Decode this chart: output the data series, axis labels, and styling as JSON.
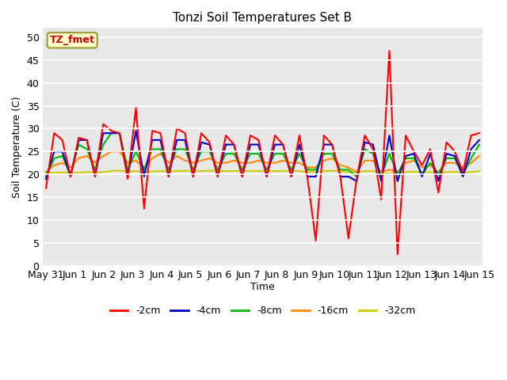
{
  "title": "Tonzi Soil Temperatures Set B",
  "xlabel": "Time",
  "ylabel": "Soil Temperature (C)",
  "annotation": "TZ_fmet",
  "ylim": [
    0,
    52
  ],
  "yticks": [
    0,
    5,
    10,
    15,
    20,
    25,
    30,
    35,
    40,
    45,
    50
  ],
  "bg_color": "#e8e8e8",
  "series_colors": {
    "-2cm": "#ff0000",
    "-4cm": "#0000cc",
    "-8cm": "#00bb00",
    "-16cm": "#ff8800",
    "-32cm": "#cccc00"
  },
  "line_width": 1.5,
  "x_labels": [
    "May 31",
    "Jun 1",
    "Jun 2",
    "Jun 3",
    "Jun 4",
    "Jun 5",
    "Jun 6",
    "Jun 7",
    "Jun 8",
    "Jun 9",
    "Jun 10",
    "Jun 11",
    "Jun 12",
    "Jun 13",
    "Jun 14",
    "Jun 15"
  ],
  "data": {
    "-2cm": [
      17.0,
      29.0,
      27.5,
      19.5,
      28.0,
      27.5,
      19.5,
      31.0,
      29.5,
      29.0,
      19.0,
      34.5,
      12.5,
      29.5,
      29.0,
      19.5,
      30.0,
      29.0,
      19.5,
      29.0,
      27.0,
      19.5,
      28.5,
      26.5,
      19.5,
      28.5,
      27.5,
      19.5,
      28.5,
      26.5,
      19.5,
      28.5,
      19.0,
      5.5,
      28.5,
      26.5,
      19.5,
      6.0,
      19.0,
      28.5,
      25.5,
      14.5,
      47.0,
      2.5,
      28.5,
      25.0,
      22.0,
      25.5,
      16.0,
      27.0,
      25.0,
      20.5,
      28.5,
      29.0
    ],
    "-4cm": [
      19.0,
      25.0,
      25.0,
      19.5,
      27.5,
      27.5,
      19.5,
      29.0,
      29.0,
      29.0,
      19.5,
      29.5,
      19.5,
      27.5,
      27.5,
      19.5,
      27.5,
      27.5,
      19.5,
      27.0,
      26.5,
      19.5,
      26.5,
      26.5,
      19.5,
      26.5,
      26.5,
      19.5,
      26.5,
      26.5,
      19.5,
      26.5,
      19.5,
      19.5,
      26.5,
      26.5,
      19.5,
      19.5,
      18.5,
      27.0,
      26.5,
      18.5,
      28.5,
      18.5,
      24.0,
      24.5,
      19.5,
      24.5,
      18.5,
      24.5,
      24.0,
      19.5,
      25.5,
      27.5
    ],
    "-8cm": [
      19.5,
      23.5,
      24.0,
      20.0,
      26.5,
      25.5,
      21.0,
      26.5,
      29.0,
      29.0,
      21.0,
      25.0,
      21.0,
      25.5,
      25.5,
      21.0,
      25.5,
      25.5,
      21.0,
      25.0,
      25.0,
      21.0,
      24.5,
      24.5,
      21.0,
      24.5,
      24.5,
      21.0,
      24.5,
      24.5,
      21.0,
      24.5,
      21.0,
      21.0,
      24.5,
      24.5,
      21.0,
      21.0,
      19.5,
      25.5,
      24.5,
      19.5,
      24.5,
      20.0,
      23.5,
      23.5,
      20.0,
      22.5,
      20.0,
      23.5,
      23.5,
      20.0,
      23.5,
      26.5
    ],
    "-16cm": [
      20.5,
      22.0,
      22.5,
      21.5,
      23.5,
      24.0,
      22.5,
      24.0,
      25.0,
      25.0,
      22.5,
      23.0,
      21.5,
      23.5,
      24.5,
      22.5,
      24.0,
      23.0,
      22.5,
      23.0,
      23.5,
      22.5,
      22.5,
      23.0,
      22.5,
      22.5,
      23.0,
      22.5,
      22.5,
      23.0,
      22.5,
      22.5,
      21.5,
      21.5,
      23.0,
      23.5,
      22.0,
      21.5,
      20.5,
      23.0,
      23.0,
      20.5,
      21.0,
      20.5,
      22.5,
      23.0,
      21.5,
      22.0,
      20.5,
      22.5,
      22.5,
      21.5,
      22.5,
      24.0
    ],
    "-32cm": [
      20.5,
      20.3,
      20.4,
      20.4,
      20.3,
      20.5,
      20.4,
      20.5,
      20.7,
      20.8,
      20.6,
      20.7,
      20.5,
      20.6,
      20.7,
      20.6,
      20.7,
      20.8,
      20.7,
      20.7,
      20.8,
      20.7,
      20.7,
      20.7,
      20.7,
      20.7,
      20.7,
      20.7,
      20.7,
      20.7,
      20.7,
      20.7,
      20.5,
      20.5,
      20.7,
      20.8,
      20.6,
      20.5,
      20.4,
      20.7,
      20.7,
      20.3,
      20.2,
      20.2,
      20.5,
      20.6,
      20.4,
      20.5,
      20.3,
      20.5,
      20.5,
      20.4,
      20.5,
      20.7
    ]
  }
}
